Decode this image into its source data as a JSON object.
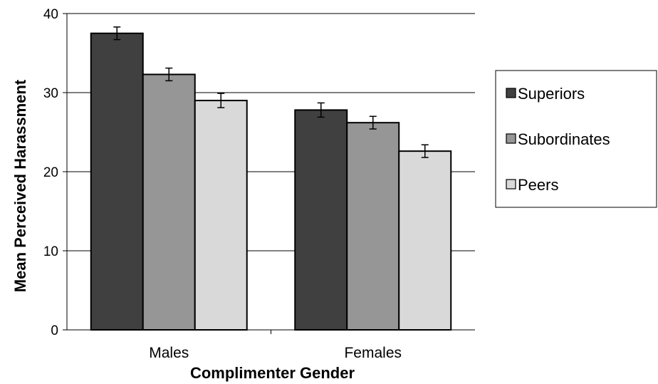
{
  "chart_data": {
    "type": "bar",
    "title": "",
    "xlabel": "Complimenter Gender",
    "ylabel": "Mean Perceived Harassment",
    "categories": [
      "Males",
      "Females"
    ],
    "ylim": [
      0,
      40
    ],
    "yticks": [
      0,
      10,
      20,
      30,
      40
    ],
    "grid": true,
    "legend_position": "right",
    "series": [
      {
        "name": "Superiors",
        "values": [
          37.5,
          27.8
        ],
        "errors": [
          0.8,
          0.9
        ],
        "color": "#404040"
      },
      {
        "name": "Subordinates",
        "values": [
          32.3,
          26.2
        ],
        "errors": [
          0.8,
          0.8
        ],
        "color": "#969696"
      },
      {
        "name": "Peers",
        "values": [
          29.0,
          22.6
        ],
        "errors": [
          0.9,
          0.8
        ],
        "color": "#d9d9d9"
      }
    ]
  }
}
